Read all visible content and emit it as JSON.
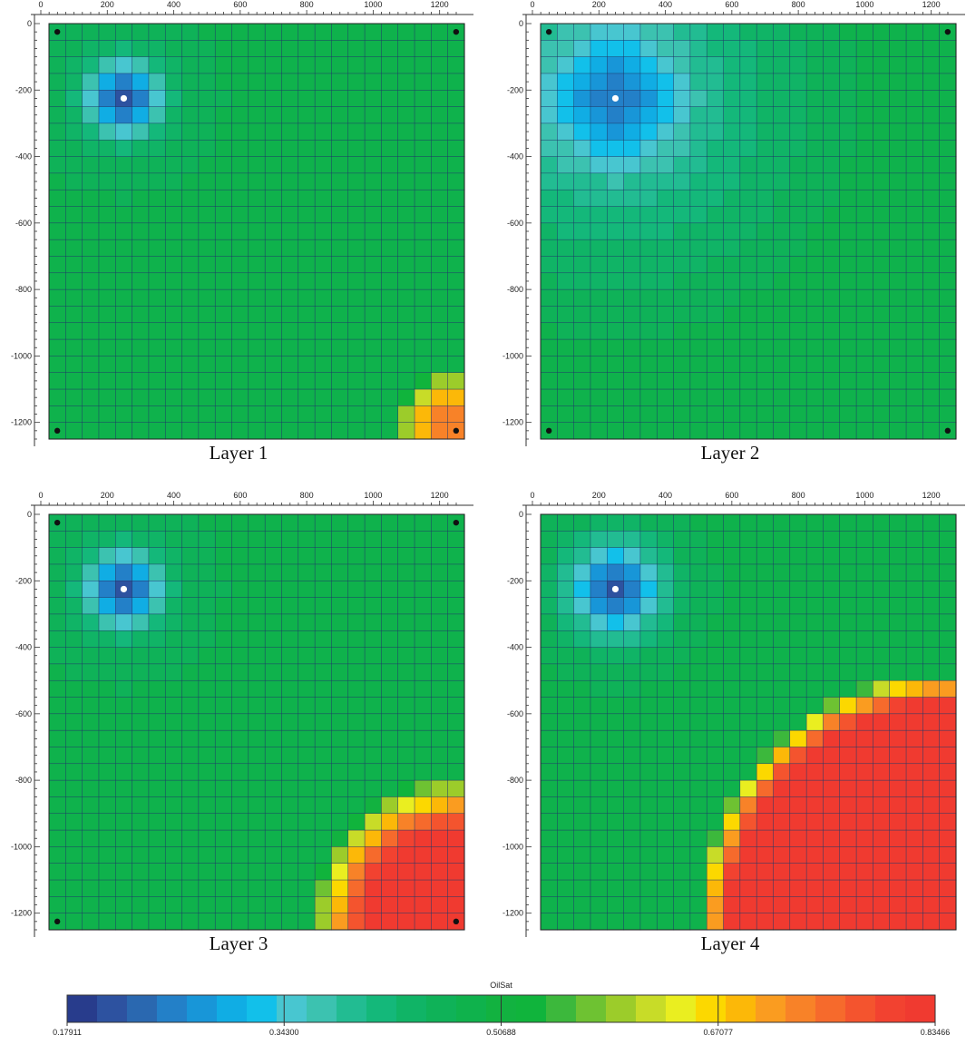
{
  "layers": [
    {
      "title": "Layer 1",
      "pattern": 1
    },
    {
      "title": "Layer 2",
      "pattern": 2
    },
    {
      "title": "Layer 3",
      "pattern": 3
    },
    {
      "title": "Layer 4",
      "pattern": 4
    }
  ],
  "axes": {
    "x_ticks": [
      "0",
      "200",
      "400",
      "600",
      "800",
      "1000",
      "1200"
    ],
    "y_ticks": [
      "0",
      "-200",
      "-400",
      "-600",
      "-800",
      "-1000",
      "-1200"
    ]
  },
  "colorbar": {
    "title": "OilSat",
    "tick_labels": [
      "0.17911",
      "0.34300",
      "0.50688",
      "0.67077",
      "0.83466"
    ],
    "colors": [
      "#283c8c",
      "#2d52a0",
      "#2a68b0",
      "#2380c8",
      "#1896d8",
      "#10ade4",
      "#12c0ea",
      "#48c6d0",
      "#3cc2b0",
      "#22bc92",
      "#14b87a",
      "#10b466",
      "#0fb258",
      "#0fb24c",
      "#12b240",
      "#10b43c",
      "#3cb83c",
      "#6ec232",
      "#9ccc2a",
      "#c8dc28",
      "#eaee20",
      "#fcd800",
      "#fcb808",
      "#fa9c20",
      "#f88228",
      "#f66a2c",
      "#f4542e",
      "#f24230",
      "#f03a30"
    ]
  },
  "chart_data": {
    "type": "heatmap",
    "variable": "OilSat",
    "value_range": [
      0.17911,
      0.83466
    ],
    "grid": {
      "nx": 25,
      "ny": 25,
      "x_range_ft": [
        0,
        1250
      ],
      "y_range_ft": [
        -1250,
        0
      ]
    },
    "wells": {
      "injector": {
        "x": 225,
        "y": -225
      },
      "producers": [
        {
          "x": 25,
          "y": -25
        },
        {
          "x": 1225,
          "y": -25
        },
        {
          "x": 25,
          "y": -1225
        },
        {
          "x": 1225,
          "y": -1225
        }
      ]
    },
    "panels": [
      {
        "title": "Layer 1",
        "min": 0.17911,
        "max": 0.78,
        "front": "narrow band along right and bottom edges"
      },
      {
        "title": "Layer 2",
        "min": 0.17911,
        "max": 0.5,
        "front": "none; swept throughout"
      },
      {
        "title": "Layer 3",
        "min": 0.17911,
        "max": 0.8,
        "front": "bottom-right corner bank"
      },
      {
        "title": "Layer 4",
        "min": 0.17911,
        "max": 0.83466,
        "front": "large bottom-right quarter-circle bank"
      }
    ]
  }
}
